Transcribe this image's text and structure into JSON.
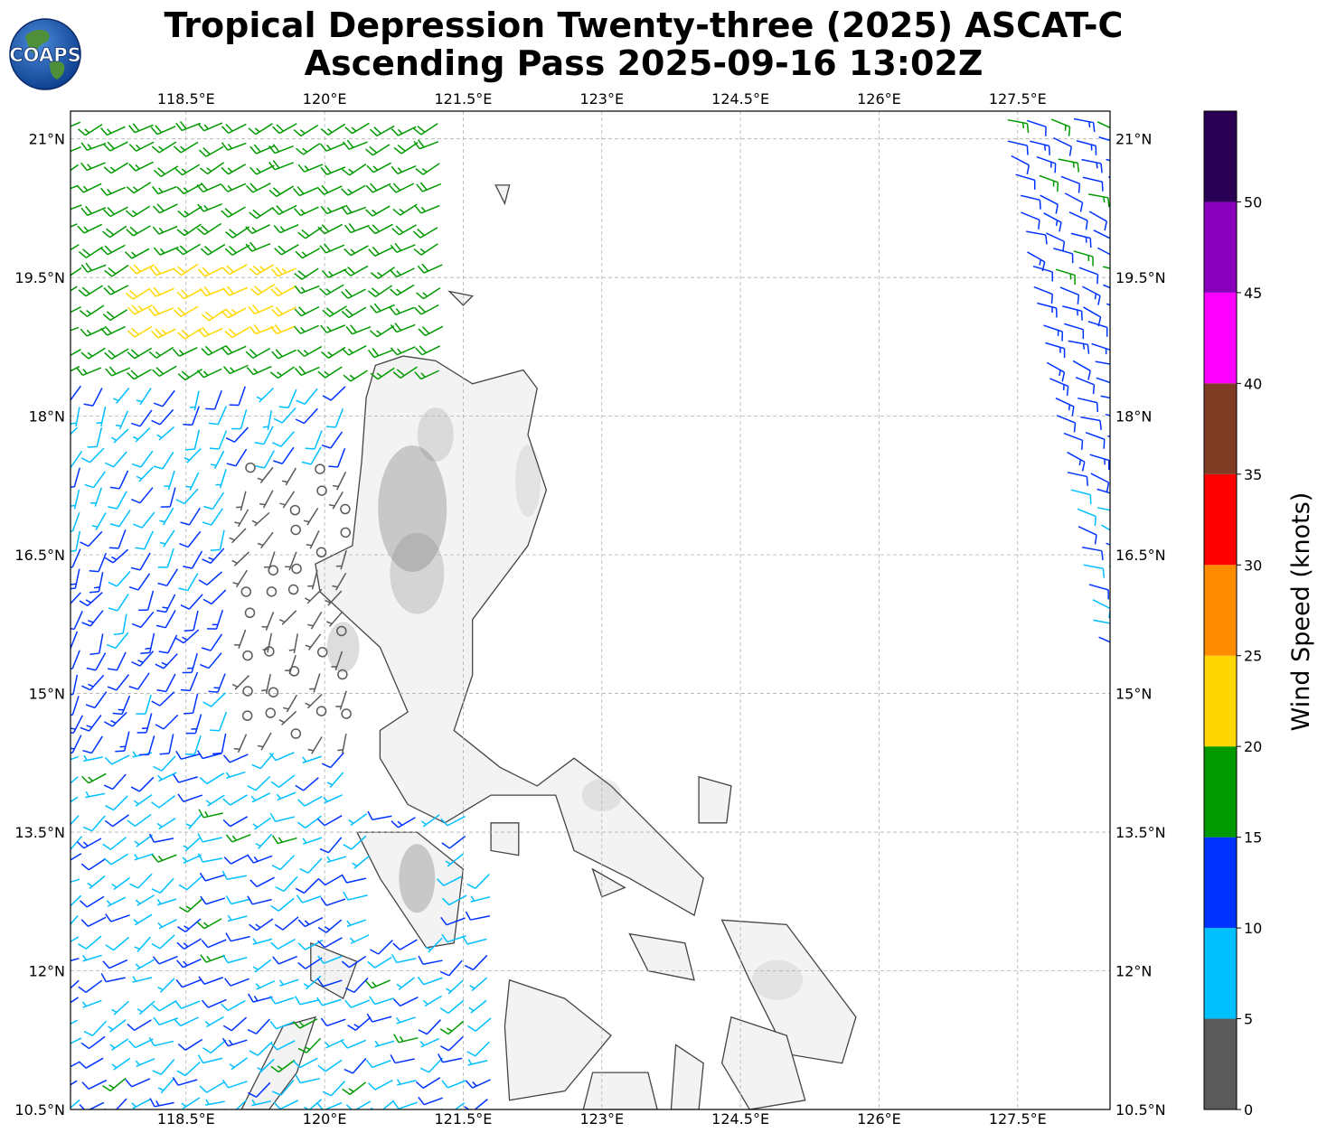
{
  "logo": {
    "text": "COAPS"
  },
  "title": {
    "line1": "Tropical Depression Twenty-three (2025) ASCAT-C",
    "line2": "Ascending Pass 2025-09-16 13:02Z"
  },
  "map": {
    "lon_range": [
      117.25,
      128.5
    ],
    "lat_range": [
      10.5,
      21.3
    ],
    "lon_ticks": [
      118.5,
      120,
      121.5,
      123,
      124.5,
      126,
      127.5
    ],
    "lon_tick_labels": [
      "118.5°E",
      "120°E",
      "121.5°E",
      "123°E",
      "124.5°E",
      "126°E",
      "127.5°E"
    ],
    "lat_ticks": [
      21,
      19.5,
      18,
      16.5,
      15,
      13.5,
      12,
      10.5
    ],
    "lat_tick_labels": [
      "21°N",
      "19.5°N",
      "18°N",
      "16.5°N",
      "15°N",
      "13.5°N",
      "12°N",
      "10.5°N"
    ],
    "gridlines": true,
    "coastline_color": "#444444",
    "grid_color": "#b0b0b0"
  },
  "colorbar": {
    "label": "Wind Speed (knots)",
    "bins": [
      {
        "from": 0,
        "to": 5,
        "color": "#5a5a5a"
      },
      {
        "from": 5,
        "to": 10,
        "color": "#00bfff"
      },
      {
        "from": 10,
        "to": 15,
        "color": "#0033ff"
      },
      {
        "from": 15,
        "to": 20,
        "color": "#009900"
      },
      {
        "from": 20,
        "to": 25,
        "color": "#ffd700"
      },
      {
        "from": 25,
        "to": 30,
        "color": "#ff8c00"
      },
      {
        "from": 30,
        "to": 35,
        "color": "#ff0000"
      },
      {
        "from": 35,
        "to": 40,
        "color": "#7f3b24"
      },
      {
        "from": 40,
        "to": 45,
        "color": "#ff00ff"
      },
      {
        "from": 45,
        "to": 50,
        "color": "#8800bb"
      },
      {
        "from": 50,
        "to": 55,
        "color": "#2a0055"
      }
    ],
    "tick_labels": [
      "0",
      "5",
      "10",
      "15",
      "20",
      "25",
      "30",
      "35",
      "40",
      "45",
      "50"
    ]
  },
  "chart_data": {
    "type": "map",
    "swaths": [
      {
        "region": "north-west",
        "lon_range": [
          117.3,
          121.8
        ],
        "lat_range": [
          18.5,
          21.3
        ],
        "wind_speed_kt": 17,
        "wind_from_deg": 240
      },
      {
        "region": "north-west core",
        "lon_range": [
          118.0,
          119.8
        ],
        "lat_range": [
          18.8,
          19.7
        ],
        "wind_speed_kt": 21,
        "wind_from_deg": 245
      },
      {
        "region": "west-central",
        "lon_range": [
          117.3,
          121.0
        ],
        "lat_range": [
          14.5,
          18.6
        ],
        "wind_speed_kt": 8,
        "wind_from_deg": 200
      },
      {
        "region": "calm centre",
        "lon_range": [
          119.0,
          120.6
        ],
        "lat_range": [
          14.0,
          17.5
        ],
        "wind_speed_kt": 3,
        "wind_from_deg": 180
      },
      {
        "region": "south-west",
        "lon_range": [
          117.3,
          122.0
        ],
        "lat_range": [
          10.5,
          14.5
        ],
        "wind_speed_kt": 10,
        "wind_from_deg": 240
      },
      {
        "region": "east swath",
        "lon_range": [
          127.0,
          128.5
        ],
        "lat_range": [
          15.5,
          21.3
        ],
        "wind_speed_kt": 12,
        "wind_from_deg": 110
      }
    ]
  }
}
